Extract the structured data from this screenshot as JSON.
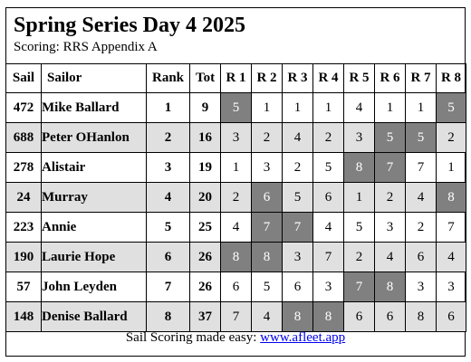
{
  "title": "Spring Series Day 4 2025",
  "subtitle": "Scoring: RRS Appendix A",
  "columns": [
    "Sail",
    "Sailor",
    "Rank",
    "Tot",
    "R 1",
    "R 2",
    "R 3",
    "R 4",
    "R 5",
    "R 6",
    "R 7",
    "R 8"
  ],
  "rows": [
    {
      "sail": "472",
      "sailor": "Mike Ballard",
      "rank": "1",
      "tot": "9",
      "races": [
        "5",
        "1",
        "1",
        "1",
        "4",
        "1",
        "1",
        "5"
      ],
      "discards": [
        0,
        7
      ]
    },
    {
      "sail": "688",
      "sailor": "Peter OHanlon",
      "rank": "2",
      "tot": "16",
      "races": [
        "3",
        "2",
        "4",
        "2",
        "3",
        "5",
        "5",
        "2"
      ],
      "discards": [
        5,
        6
      ]
    },
    {
      "sail": "278",
      "sailor": "Alistair",
      "rank": "3",
      "tot": "19",
      "races": [
        "1",
        "3",
        "2",
        "5",
        "8",
        "7",
        "7",
        "1"
      ],
      "discards": [
        4,
        5
      ]
    },
    {
      "sail": "24",
      "sailor": "Murray",
      "rank": "4",
      "tot": "20",
      "races": [
        "2",
        "6",
        "5",
        "6",
        "1",
        "2",
        "4",
        "8"
      ],
      "discards": [
        1,
        7
      ]
    },
    {
      "sail": "223",
      "sailor": "Annie",
      "rank": "5",
      "tot": "25",
      "races": [
        "4",
        "7",
        "7",
        "4",
        "5",
        "3",
        "2",
        "7"
      ],
      "discards": [
        1,
        2
      ]
    },
    {
      "sail": "190",
      "sailor": "Laurie Hope",
      "rank": "6",
      "tot": "26",
      "races": [
        "8",
        "8",
        "3",
        "7",
        "2",
        "4",
        "6",
        "4"
      ],
      "discards": [
        0,
        1
      ]
    },
    {
      "sail": "57",
      "sailor": "John Leyden",
      "rank": "7",
      "tot": "26",
      "races": [
        "6",
        "5",
        "6",
        "3",
        "7",
        "8",
        "3",
        "3"
      ],
      "discards": [
        4,
        5
      ]
    },
    {
      "sail": "148",
      "sailor": "Denise Ballard",
      "rank": "8",
      "tot": "37",
      "races": [
        "7",
        "4",
        "8",
        "8",
        "6",
        "6",
        "8",
        "6"
      ],
      "discards": [
        2,
        3
      ]
    }
  ],
  "footer": {
    "text": "Sail Scoring made easy: ",
    "link_text": "www.afleet.app"
  },
  "colors": {
    "discard_bg": "#808080",
    "alt_row_bg": "#e0e0e0",
    "link": "#0000ee"
  }
}
